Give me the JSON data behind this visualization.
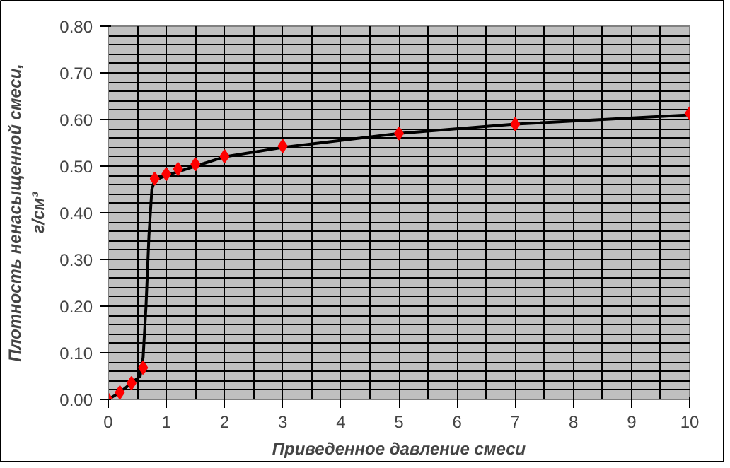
{
  "chart_data": {
    "type": "scatter",
    "xlabel": "Приведенное давление смеси",
    "ylabel": "Плотность ненасыщенной смеси,\nг/см³",
    "xlim": [
      0,
      10
    ],
    "ylim": [
      0,
      0.8
    ],
    "xticks": [
      0,
      1,
      2,
      3,
      4,
      5,
      6,
      7,
      8,
      9,
      10
    ],
    "yticks": [
      {
        "value": 0,
        "label": "0.00"
      },
      {
        "value": 0.1,
        "label": "0.10"
      },
      {
        "value": 0.2,
        "label": "0.20"
      },
      {
        "value": 0.3,
        "label": "0.30"
      },
      {
        "value": 0.4,
        "label": "0.40"
      },
      {
        "value": 0.5,
        "label": "0.50"
      },
      {
        "value": 0.6,
        "label": "0.60"
      },
      {
        "value": 0.7,
        "label": "0.70"
      },
      {
        "value": 0.8,
        "label": "0.80"
      }
    ],
    "grid": true,
    "series": [
      {
        "type": "line",
        "color": "#000000",
        "marker": "none",
        "x": [
          0,
          0.2,
          0.4,
          0.55,
          0.6,
          0.65,
          0.7,
          0.75,
          0.8,
          1,
          1.5,
          2,
          3,
          5,
          7,
          10
        ],
        "values": [
          0,
          0.015,
          0.035,
          0.05,
          0.09,
          0.2,
          0.35,
          0.45,
          0.47,
          0.48,
          0.5,
          0.52,
          0.54,
          0.57,
          0.59,
          0.61
        ]
      },
      {
        "color": "#ff0000",
        "marker": "diamond",
        "x": [
          0,
          0.2,
          0.4,
          0.6,
          0.8,
          1,
          1.2,
          1.5,
          2,
          3,
          5,
          7,
          10
        ],
        "values": [
          0,
          0.015,
          0.035,
          0.068,
          0.473,
          0.483,
          0.494,
          0.504,
          0.521,
          0.543,
          0.57,
          0.59,
          0.613
        ]
      }
    ]
  }
}
